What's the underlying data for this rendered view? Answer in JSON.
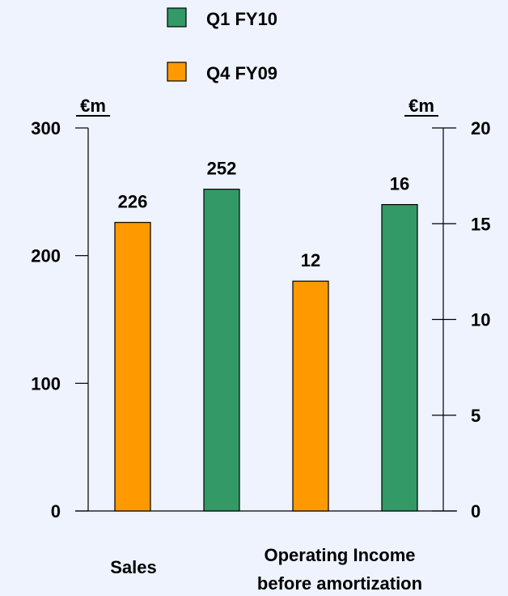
{
  "chart_data": {
    "type": "bar",
    "legend": {
      "position": "top-center",
      "items": [
        {
          "name": "Q1 FY10",
          "color": "#339966"
        },
        {
          "name": "Q4 FY09",
          "color": "#ff9900"
        }
      ]
    },
    "left_axis": {
      "unit_label": "€m",
      "ticks": [
        "0",
        "100",
        "200",
        "300"
      ],
      "range": [
        0,
        300
      ]
    },
    "right_axis": {
      "unit_label": "€m",
      "ticks": [
        "0",
        "5",
        "10",
        "15",
        "20"
      ],
      "range": [
        0,
        20
      ]
    },
    "groups": [
      {
        "label": "Sales",
        "axis": "left",
        "bars": [
          {
            "series": "Q4 FY09",
            "value": 226,
            "label": "226"
          },
          {
            "series": "Q1 FY10",
            "value": 252,
            "label": "252"
          }
        ]
      },
      {
        "label": "Operating Income before amortization",
        "label_lines": [
          "Operating Income",
          "before amortization"
        ],
        "axis": "right",
        "bars": [
          {
            "series": "Q4 FY09",
            "value": 12,
            "label": "12"
          },
          {
            "series": "Q1 FY10",
            "value": 16,
            "label": "16"
          }
        ]
      }
    ],
    "grid": false
  }
}
